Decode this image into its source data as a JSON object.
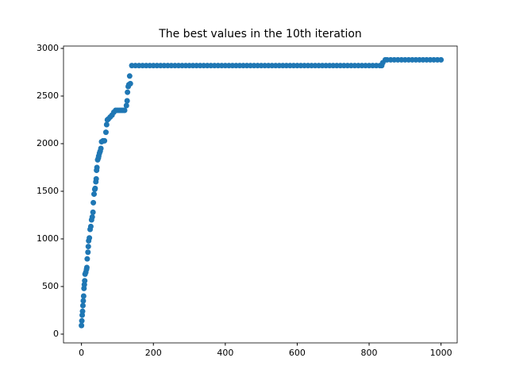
{
  "chart_data": {
    "type": "scatter",
    "title": "The best values in the 10th iteration",
    "color": "#1f77b4",
    "x": [
      0,
      1,
      2,
      3,
      4,
      5,
      6,
      7,
      8,
      9,
      10,
      12,
      14,
      15,
      16,
      18,
      19,
      20,
      22,
      24,
      26,
      28,
      30,
      32,
      33,
      35,
      37,
      38,
      40,
      41,
      42,
      43,
      45,
      47,
      48,
      50,
      52,
      54,
      56,
      60,
      64,
      68,
      70,
      72,
      75,
      80,
      85,
      90,
      95,
      100,
      105,
      110,
      115,
      120,
      125,
      127,
      128,
      130,
      132,
      134,
      136,
      140,
      150,
      160,
      170,
      180,
      190,
      200,
      210,
      220,
      230,
      240,
      250,
      260,
      270,
      280,
      290,
      300,
      310,
      320,
      330,
      340,
      350,
      360,
      370,
      380,
      390,
      400,
      410,
      420,
      430,
      440,
      450,
      460,
      470,
      480,
      490,
      500,
      510,
      520,
      530,
      540,
      550,
      560,
      570,
      580,
      590,
      600,
      610,
      620,
      630,
      640,
      650,
      660,
      670,
      680,
      690,
      700,
      710,
      720,
      730,
      740,
      750,
      760,
      770,
      780,
      790,
      800,
      810,
      820,
      830,
      835,
      838,
      845,
      850,
      860,
      870,
      880,
      890,
      900,
      910,
      920,
      930,
      940,
      950,
      960,
      970,
      980,
      990,
      1000
    ],
    "values": [
      90,
      140,
      200,
      240,
      300,
      350,
      400,
      480,
      520,
      560,
      630,
      650,
      680,
      700,
      790,
      860,
      920,
      980,
      1010,
      1100,
      1130,
      1200,
      1230,
      1280,
      1380,
      1470,
      1520,
      1530,
      1600,
      1630,
      1720,
      1750,
      1830,
      1850,
      1870,
      1900,
      1920,
      1950,
      2020,
      2030,
      2030,
      2120,
      2200,
      2250,
      2260,
      2280,
      2300,
      2330,
      2350,
      2350,
      2350,
      2350,
      2350,
      2350,
      2400,
      2450,
      2540,
      2600,
      2620,
      2710,
      2630,
      2820,
      2820,
      2820,
      2820,
      2820,
      2820,
      2820,
      2820,
      2820,
      2820,
      2820,
      2820,
      2820,
      2820,
      2820,
      2820,
      2820,
      2820,
      2820,
      2820,
      2820,
      2820,
      2820,
      2820,
      2820,
      2820,
      2820,
      2820,
      2820,
      2820,
      2820,
      2820,
      2820,
      2820,
      2820,
      2820,
      2820,
      2820,
      2820,
      2820,
      2820,
      2820,
      2820,
      2820,
      2820,
      2820,
      2820,
      2820,
      2820,
      2820,
      2820,
      2820,
      2820,
      2820,
      2820,
      2820,
      2820,
      2820,
      2820,
      2820,
      2820,
      2820,
      2820,
      2820,
      2820,
      2820,
      2820,
      2820,
      2820,
      2820,
      2820,
      2850,
      2880,
      2880,
      2880,
      2880,
      2880,
      2880,
      2880,
      2880,
      2880,
      2880,
      2880,
      2880,
      2880,
      2880,
      2880,
      2880,
      2880
    ],
    "xlim": [
      -50,
      1045
    ],
    "ylim": [
      -92,
      3025
    ],
    "xticks": [
      0,
      200,
      400,
      600,
      800,
      1000
    ],
    "yticks": [
      0,
      500,
      1000,
      1500,
      2000,
      2500,
      3000
    ]
  }
}
